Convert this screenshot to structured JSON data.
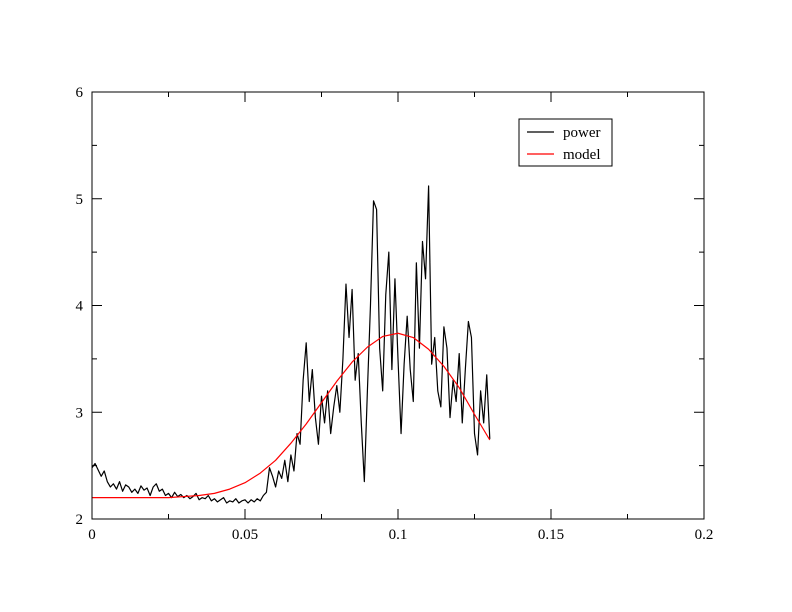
{
  "chart_data": {
    "type": "line",
    "title": "",
    "xlabel": "",
    "ylabel": "",
    "xlim": [
      0,
      0.2
    ],
    "ylim": [
      2,
      6
    ],
    "x_ticks": [
      0,
      0.05,
      0.1,
      0.15,
      0.2
    ],
    "x_tick_labels": [
      "0",
      "0.05",
      "0.1",
      "0.15",
      "0.2"
    ],
    "y_ticks": [
      2,
      3,
      4,
      5,
      6
    ],
    "y_tick_labels": [
      "2",
      "3",
      "4",
      "5",
      "6"
    ],
    "grid": false,
    "legend_position": "top-right",
    "series": [
      {
        "name": "power",
        "color": "#000000",
        "points": [
          [
            0.0,
            2.48
          ],
          [
            0.001,
            2.52
          ],
          [
            0.002,
            2.46
          ],
          [
            0.003,
            2.4
          ],
          [
            0.004,
            2.45
          ],
          [
            0.005,
            2.35
          ],
          [
            0.006,
            2.3
          ],
          [
            0.007,
            2.33
          ],
          [
            0.008,
            2.28
          ],
          [
            0.009,
            2.35
          ],
          [
            0.01,
            2.26
          ],
          [
            0.011,
            2.32
          ],
          [
            0.012,
            2.3
          ],
          [
            0.013,
            2.25
          ],
          [
            0.014,
            2.28
          ],
          [
            0.015,
            2.24
          ],
          [
            0.016,
            2.31
          ],
          [
            0.017,
            2.27
          ],
          [
            0.018,
            2.29
          ],
          [
            0.019,
            2.22
          ],
          [
            0.02,
            2.3
          ],
          [
            0.021,
            2.33
          ],
          [
            0.022,
            2.26
          ],
          [
            0.023,
            2.28
          ],
          [
            0.024,
            2.22
          ],
          [
            0.025,
            2.24
          ],
          [
            0.026,
            2.2
          ],
          [
            0.027,
            2.25
          ],
          [
            0.028,
            2.21
          ],
          [
            0.029,
            2.23
          ],
          [
            0.03,
            2.2
          ],
          [
            0.031,
            2.22
          ],
          [
            0.032,
            2.19
          ],
          [
            0.033,
            2.21
          ],
          [
            0.034,
            2.24
          ],
          [
            0.035,
            2.18
          ],
          [
            0.036,
            2.2
          ],
          [
            0.037,
            2.19
          ],
          [
            0.038,
            2.22
          ],
          [
            0.039,
            2.17
          ],
          [
            0.04,
            2.19
          ],
          [
            0.041,
            2.16
          ],
          [
            0.042,
            2.18
          ],
          [
            0.043,
            2.2
          ],
          [
            0.044,
            2.15
          ],
          [
            0.045,
            2.17
          ],
          [
            0.046,
            2.16
          ],
          [
            0.047,
            2.19
          ],
          [
            0.048,
            2.15
          ],
          [
            0.049,
            2.17
          ],
          [
            0.05,
            2.18
          ],
          [
            0.051,
            2.15
          ],
          [
            0.052,
            2.18
          ],
          [
            0.053,
            2.16
          ],
          [
            0.054,
            2.19
          ],
          [
            0.055,
            2.17
          ],
          [
            0.056,
            2.22
          ],
          [
            0.057,
            2.25
          ],
          [
            0.058,
            2.48
          ],
          [
            0.059,
            2.4
          ],
          [
            0.06,
            2.3
          ],
          [
            0.061,
            2.45
          ],
          [
            0.062,
            2.38
          ],
          [
            0.063,
            2.55
          ],
          [
            0.064,
            2.35
          ],
          [
            0.065,
            2.6
          ],
          [
            0.066,
            2.45
          ],
          [
            0.067,
            2.8
          ],
          [
            0.068,
            2.7
          ],
          [
            0.069,
            3.3
          ],
          [
            0.07,
            3.65
          ],
          [
            0.071,
            3.1
          ],
          [
            0.072,
            3.4
          ],
          [
            0.073,
            2.95
          ],
          [
            0.074,
            2.7
          ],
          [
            0.075,
            3.15
          ],
          [
            0.076,
            2.9
          ],
          [
            0.077,
            3.2
          ],
          [
            0.078,
            2.8
          ],
          [
            0.079,
            3.05
          ],
          [
            0.08,
            3.25
          ],
          [
            0.081,
            3.0
          ],
          [
            0.082,
            3.5
          ],
          [
            0.083,
            4.2
          ],
          [
            0.084,
            3.7
          ],
          [
            0.085,
            4.15
          ],
          [
            0.086,
            3.3
          ],
          [
            0.087,
            3.55
          ],
          [
            0.088,
            2.9
          ],
          [
            0.089,
            2.35
          ],
          [
            0.09,
            3.2
          ],
          [
            0.091,
            4.0
          ],
          [
            0.092,
            4.98
          ],
          [
            0.093,
            4.9
          ],
          [
            0.094,
            3.6
          ],
          [
            0.095,
            3.2
          ],
          [
            0.096,
            4.1
          ],
          [
            0.097,
            4.5
          ],
          [
            0.098,
            3.4
          ],
          [
            0.099,
            4.25
          ],
          [
            0.1,
            3.5
          ],
          [
            0.101,
            2.8
          ],
          [
            0.102,
            3.45
          ],
          [
            0.103,
            3.9
          ],
          [
            0.104,
            3.4
          ],
          [
            0.105,
            3.1
          ],
          [
            0.106,
            4.4
          ],
          [
            0.107,
            3.6
          ],
          [
            0.108,
            4.6
          ],
          [
            0.109,
            4.25
          ],
          [
            0.11,
            5.12
          ],
          [
            0.111,
            3.45
          ],
          [
            0.112,
            3.7
          ],
          [
            0.113,
            3.2
          ],
          [
            0.114,
            3.05
          ],
          [
            0.115,
            3.8
          ],
          [
            0.116,
            3.6
          ],
          [
            0.117,
            2.95
          ],
          [
            0.118,
            3.3
          ],
          [
            0.119,
            3.1
          ],
          [
            0.12,
            3.55
          ],
          [
            0.121,
            2.9
          ],
          [
            0.122,
            3.4
          ],
          [
            0.123,
            3.85
          ],
          [
            0.124,
            3.7
          ],
          [
            0.125,
            2.8
          ],
          [
            0.126,
            2.6
          ],
          [
            0.127,
            3.2
          ],
          [
            0.128,
            2.9
          ],
          [
            0.129,
            3.35
          ],
          [
            0.13,
            2.75
          ]
        ]
      },
      {
        "name": "model",
        "color": "#ff0000",
        "points": [
          [
            0.0,
            2.2
          ],
          [
            0.005,
            2.2
          ],
          [
            0.01,
            2.2
          ],
          [
            0.015,
            2.2
          ],
          [
            0.02,
            2.2
          ],
          [
            0.025,
            2.2
          ],
          [
            0.03,
            2.21
          ],
          [
            0.035,
            2.22
          ],
          [
            0.04,
            2.24
          ],
          [
            0.045,
            2.28
          ],
          [
            0.05,
            2.34
          ],
          [
            0.055,
            2.43
          ],
          [
            0.06,
            2.55
          ],
          [
            0.065,
            2.71
          ],
          [
            0.07,
            2.89
          ],
          [
            0.075,
            3.09
          ],
          [
            0.08,
            3.29
          ],
          [
            0.085,
            3.47
          ],
          [
            0.09,
            3.61
          ],
          [
            0.095,
            3.71
          ],
          [
            0.1,
            3.74
          ],
          [
            0.105,
            3.7
          ],
          [
            0.11,
            3.59
          ],
          [
            0.115,
            3.43
          ],
          [
            0.12,
            3.23
          ],
          [
            0.125,
            2.98
          ],
          [
            0.13,
            2.74
          ]
        ]
      }
    ]
  }
}
